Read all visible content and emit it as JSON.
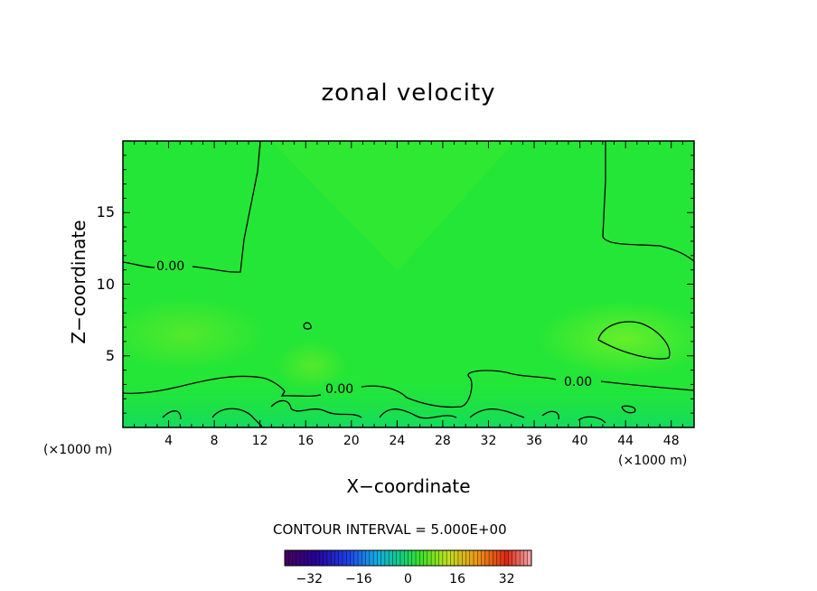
{
  "chart_data": {
    "type": "heatmap",
    "title": "zonal velocity",
    "xlabel": "X−coordinate",
    "ylabel": "Z−coordinate",
    "x_unit_left": "(×1000 m)",
    "x_unit_right": "(×1000 m)",
    "xlim": [
      0,
      50
    ],
    "ylim": [
      0,
      20
    ],
    "xticks": [
      4,
      8,
      12,
      16,
      20,
      24,
      28,
      32,
      36,
      40,
      44,
      48
    ],
    "yticks": [
      5,
      10,
      15
    ],
    "contour_interval_text": "CONTOUR INTERVAL = 5.000E+00",
    "contour_labels": [
      "0.00",
      "0.00",
      "0.00"
    ],
    "colorbar": {
      "range": [
        -40,
        40
      ],
      "ticks": [
        -32,
        -16,
        0,
        16,
        32
      ]
    },
    "colors": {
      "field": "#22e83a",
      "background": "#ffffff",
      "contour": "#000000"
    }
  }
}
